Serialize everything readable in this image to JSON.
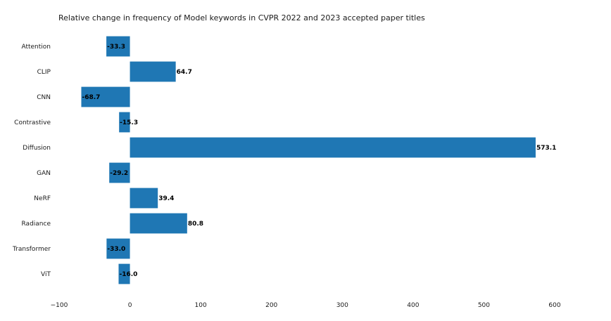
{
  "chart_data": {
    "type": "bar",
    "orientation": "horizontal",
    "title": "Relative change in frequency of Model keywords in CVPR 2022 and 2023 accepted paper titles",
    "xlabel": "",
    "ylabel": "",
    "categories": [
      "Attention",
      "CLIP",
      "CNN",
      "Contrastive",
      "Diffusion",
      "GAN",
      "NeRF",
      "Radiance",
      "Transformer",
      "ViT"
    ],
    "values": [
      -33.3,
      64.7,
      -68.7,
      -15.3,
      573.1,
      -29.2,
      39.4,
      80.8,
      -33.0,
      -16.0
    ],
    "value_labels": [
      "-33.3",
      "64.7",
      "-68.7",
      "-15.3",
      "573.1",
      "-29.2",
      "39.4",
      "80.8",
      "-33.0",
      "-16.0"
    ],
    "xlim": [
      -100,
      600
    ],
    "xticks": [
      -100,
      0,
      100,
      200,
      300,
      400,
      500,
      600
    ],
    "xtick_labels": [
      "−100",
      "0",
      "100",
      "200",
      "300",
      "400",
      "500",
      "600"
    ],
    "bar_color": "#1f77b4",
    "grid": false,
    "legend": "none"
  }
}
